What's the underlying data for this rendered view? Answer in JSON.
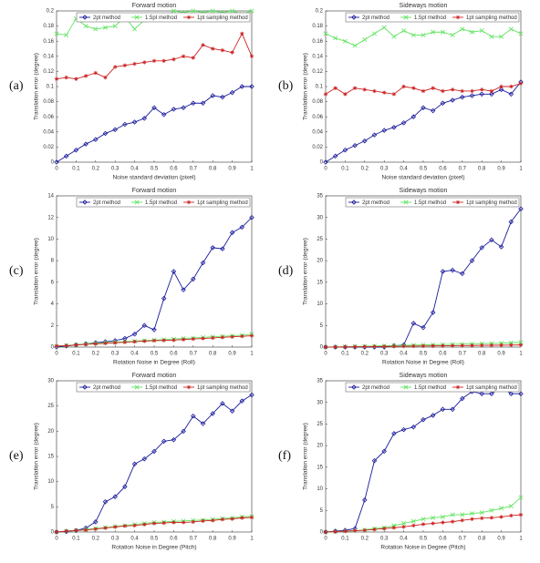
{
  "chart_data": [
    {
      "type": "line",
      "panel_label": "(a)",
      "title": "Forward motion",
      "x_label": "Noise standard deviation (pixel)",
      "y_label": "Translation error (degree)",
      "x": [
        0,
        0.05,
        0.1,
        0.15,
        0.2,
        0.25,
        0.3,
        0.35,
        0.4,
        0.45,
        0.5,
        0.55,
        0.6,
        0.65,
        0.7,
        0.75,
        0.8,
        0.85,
        0.9,
        0.95,
        1
      ],
      "xlim": [
        0,
        1
      ],
      "xticks": [
        0,
        0.1,
        0.2,
        0.3,
        0.4,
        0.5,
        0.6,
        0.7,
        0.8,
        0.9,
        1
      ],
      "ylim": [
        0,
        0.2
      ],
      "yticks": [
        0,
        0.02,
        0.04,
        0.06,
        0.08,
        0.1,
        0.12,
        0.14,
        0.16,
        0.18,
        0.2
      ],
      "legend": "top",
      "series": [
        {
          "name": "2pt method",
          "color": "#1a1a9c",
          "marker": "diamond",
          "values": [
            0,
            0.008,
            0.016,
            0.024,
            0.03,
            0.038,
            0.043,
            0.05,
            0.053,
            0.058,
            0.072,
            0.063,
            0.07,
            0.072,
            0.078,
            0.078,
            0.088,
            0.086,
            0.092,
            0.1,
            0.1
          ]
        },
        {
          "name": "1.5pt method",
          "color": "#5fe35f",
          "marker": "x",
          "values": [
            0.17,
            0.168,
            0.19,
            0.18,
            0.176,
            0.178,
            0.18,
            0.192,
            0.176,
            0.188,
            0.19,
            0.19,
            0.2,
            0.198,
            0.2,
            0.198,
            0.2,
            0.198,
            0.2,
            0.196,
            0.2
          ]
        },
        {
          "name": "1pt sampling method",
          "color": "#cc2222",
          "marker": "star",
          "values": [
            0.11,
            0.112,
            0.11,
            0.114,
            0.118,
            0.112,
            0.126,
            0.128,
            0.13,
            0.132,
            0.134,
            0.134,
            0.136,
            0.14,
            0.138,
            0.155,
            0.15,
            0.148,
            0.145,
            0.17,
            0.14
          ]
        }
      ]
    },
    {
      "type": "line",
      "panel_label": "(b)",
      "title": "Sideways motion",
      "x_label": "Noise standard deviation (pixel)",
      "y_label": "Translation error (degree)",
      "x": [
        0,
        0.05,
        0.1,
        0.15,
        0.2,
        0.25,
        0.3,
        0.35,
        0.4,
        0.45,
        0.5,
        0.55,
        0.6,
        0.65,
        0.7,
        0.75,
        0.8,
        0.85,
        0.9,
        0.95,
        1
      ],
      "xlim": [
        0,
        1
      ],
      "xticks": [
        0,
        0.1,
        0.2,
        0.3,
        0.4,
        0.5,
        0.6,
        0.7,
        0.8,
        0.9,
        1
      ],
      "ylim": [
        0,
        0.2
      ],
      "yticks": [
        0,
        0.02,
        0.04,
        0.06,
        0.08,
        0.1,
        0.12,
        0.14,
        0.16,
        0.18,
        0.2
      ],
      "legend": "top",
      "series": [
        {
          "name": "2pt method",
          "color": "#1a1a9c",
          "marker": "diamond",
          "values": [
            0,
            0.008,
            0.016,
            0.022,
            0.028,
            0.036,
            0.042,
            0.046,
            0.052,
            0.06,
            0.072,
            0.068,
            0.078,
            0.082,
            0.086,
            0.088,
            0.09,
            0.09,
            0.096,
            0.09,
            0.106
          ]
        },
        {
          "name": "1.5pt method",
          "color": "#5fe35f",
          "marker": "x",
          "values": [
            0.17,
            0.164,
            0.16,
            0.154,
            0.162,
            0.17,
            0.178,
            0.166,
            0.174,
            0.168,
            0.168,
            0.172,
            0.172,
            0.168,
            0.176,
            0.172,
            0.174,
            0.166,
            0.166,
            0.176,
            0.17
          ]
        },
        {
          "name": "1pt sampling method",
          "color": "#cc2222",
          "marker": "star",
          "values": [
            0.09,
            0.098,
            0.09,
            0.098,
            0.096,
            0.094,
            0.092,
            0.09,
            0.1,
            0.098,
            0.094,
            0.098,
            0.094,
            0.096,
            0.094,
            0.094,
            0.096,
            0.094,
            0.1,
            0.1,
            0.104
          ]
        }
      ]
    },
    {
      "type": "line",
      "panel_label": "(c)",
      "title": "Forward motion",
      "x_label": "Rotation Noise in Degree (Roll)",
      "y_label": "Translation error (degree)",
      "x": [
        0,
        0.05,
        0.1,
        0.15,
        0.2,
        0.25,
        0.3,
        0.35,
        0.4,
        0.45,
        0.5,
        0.55,
        0.6,
        0.65,
        0.7,
        0.75,
        0.8,
        0.85,
        0.9,
        0.95,
        1
      ],
      "xlim": [
        0,
        1
      ],
      "xticks": [
        0,
        0.1,
        0.2,
        0.3,
        0.4,
        0.5,
        0.6,
        0.7,
        0.8,
        0.9,
        1
      ],
      "ylim": [
        0,
        14
      ],
      "yticks": [
        0,
        2,
        4,
        6,
        8,
        10,
        12,
        14
      ],
      "legend": "top",
      "series": [
        {
          "name": "2pt method",
          "color": "#1a1a9c",
          "marker": "diamond",
          "values": [
            0,
            0.1,
            0.2,
            0.3,
            0.4,
            0.5,
            0.6,
            0.8,
            1.2,
            2,
            1.6,
            4.5,
            7,
            5.3,
            6.3,
            7.8,
            9.2,
            9.1,
            10.6,
            11.1,
            12
          ]
        },
        {
          "name": "1.5pt method",
          "color": "#5fe35f",
          "marker": "x",
          "values": [
            0.1,
            0.15,
            0.2,
            0.3,
            0.35,
            0.4,
            0.45,
            0.5,
            0.55,
            0.6,
            0.65,
            0.7,
            0.75,
            0.8,
            0.85,
            0.9,
            0.95,
            1,
            1.05,
            1.1,
            1.2
          ]
        },
        {
          "name": "1pt sampling method",
          "color": "#cc2222",
          "marker": "star",
          "values": [
            0.1,
            0.12,
            0.2,
            0.25,
            0.3,
            0.35,
            0.4,
            0.45,
            0.5,
            0.55,
            0.6,
            0.62,
            0.65,
            0.7,
            0.75,
            0.8,
            0.85,
            0.9,
            0.95,
            1,
            1.05
          ]
        }
      ]
    },
    {
      "type": "line",
      "panel_label": "(d)",
      "title": "Sideways motion",
      "x_label": "Rotation Noise in Degree (Roll)",
      "y_label": "Translation error (degree)",
      "x": [
        0,
        0.05,
        0.1,
        0.15,
        0.2,
        0.25,
        0.3,
        0.35,
        0.4,
        0.45,
        0.5,
        0.55,
        0.6,
        0.65,
        0.7,
        0.75,
        0.8,
        0.85,
        0.9,
        0.95,
        1
      ],
      "xlim": [
        0,
        1
      ],
      "xticks": [
        0,
        0.1,
        0.2,
        0.3,
        0.4,
        0.5,
        0.6,
        0.7,
        0.8,
        0.9,
        1
      ],
      "ylim": [
        0,
        35
      ],
      "yticks": [
        0,
        5,
        10,
        15,
        20,
        25,
        30,
        35
      ],
      "legend": "top",
      "series": [
        {
          "name": "2pt method",
          "color": "#1a1a9c",
          "marker": "diamond",
          "values": [
            0,
            0,
            0,
            0,
            0,
            0,
            0,
            0.3,
            0.5,
            5.5,
            4.5,
            8,
            17.5,
            17.8,
            17,
            20,
            23,
            24.8,
            23.2,
            29,
            32
          ]
        },
        {
          "name": "1.5pt method",
          "color": "#5fe35f",
          "marker": "x",
          "values": [
            0,
            0.05,
            0.1,
            0.15,
            0.2,
            0.25,
            0.3,
            0.35,
            0.4,
            0.45,
            0.5,
            0.55,
            0.6,
            0.65,
            0.7,
            0.75,
            0.8,
            0.85,
            0.9,
            1,
            1.1
          ]
        },
        {
          "name": "1pt sampling method",
          "color": "#cc2222",
          "marker": "star",
          "values": [
            0,
            0.02,
            0.05,
            0.07,
            0.1,
            0.12,
            0.15,
            0.17,
            0.2,
            0.22,
            0.25,
            0.27,
            0.3,
            0.32,
            0.35,
            0.37,
            0.4,
            0.42,
            0.45,
            0.47,
            0.5
          ]
        }
      ]
    },
    {
      "type": "line",
      "panel_label": "(e)",
      "title": "Forward motion",
      "x_label": "Rotation Noise in Degree (Pitch)",
      "y_label": "Translation error (degree)",
      "x": [
        0,
        0.05,
        0.1,
        0.15,
        0.2,
        0.25,
        0.3,
        0.35,
        0.4,
        0.45,
        0.5,
        0.55,
        0.6,
        0.65,
        0.7,
        0.75,
        0.8,
        0.85,
        0.9,
        0.95,
        1
      ],
      "xlim": [
        0,
        1
      ],
      "xticks": [
        0,
        0.1,
        0.2,
        0.3,
        0.4,
        0.5,
        0.6,
        0.7,
        0.8,
        0.9,
        1
      ],
      "ylim": [
        0,
        30
      ],
      "yticks": [
        0,
        5,
        10,
        15,
        20,
        25,
        30
      ],
      "legend": "top",
      "series": [
        {
          "name": "2pt method",
          "color": "#1a1a9c",
          "marker": "diamond",
          "values": [
            0,
            0.1,
            0.3,
            0.8,
            2,
            6,
            7,
            9,
            13.5,
            14.5,
            16,
            18,
            18.3,
            20,
            23,
            21.5,
            23.5,
            25.5,
            24,
            26,
            27.2
          ]
        },
        {
          "name": "1.5pt method",
          "color": "#5fe35f",
          "marker": "x",
          "values": [
            0,
            0.2,
            0.3,
            0.5,
            0.7,
            0.9,
            1.1,
            1.3,
            1.5,
            1.7,
            1.9,
            2,
            2.1,
            2.2,
            2.3,
            2.4,
            2.5,
            2.7,
            2.8,
            3,
            3.1
          ]
        },
        {
          "name": "1pt sampling method",
          "color": "#cc2222",
          "marker": "star",
          "values": [
            0,
            0.2,
            0.3,
            0.4,
            0.6,
            0.8,
            1,
            1.2,
            1.3,
            1.5,
            1.7,
            1.8,
            1.9,
            1.9,
            2,
            2.2,
            2.3,
            2.5,
            2.6,
            2.8,
            2.9
          ]
        }
      ]
    },
    {
      "type": "line",
      "panel_label": "(f)",
      "title": "Sideways motion",
      "x_label": "Rotation Noise in Degree (Pitch)",
      "y_label": "Translation error (degree)",
      "x": [
        0,
        0.05,
        0.1,
        0.15,
        0.2,
        0.25,
        0.3,
        0.35,
        0.4,
        0.45,
        0.5,
        0.55,
        0.6,
        0.65,
        0.7,
        0.75,
        0.8,
        0.85,
        0.9,
        0.95,
        1
      ],
      "xlim": [
        0,
        1
      ],
      "xticks": [
        0,
        0.1,
        0.2,
        0.3,
        0.4,
        0.5,
        0.6,
        0.7,
        0.8,
        0.9,
        1
      ],
      "ylim": [
        0,
        35
      ],
      "yticks": [
        0,
        5,
        10,
        15,
        20,
        25,
        30,
        35
      ],
      "legend": "top",
      "series": [
        {
          "name": "2pt method",
          "color": "#1a1a9c",
          "marker": "diamond",
          "values": [
            0,
            0.2,
            0.4,
            0.8,
            7.4,
            16.5,
            18.7,
            22.8,
            23.7,
            24.3,
            26,
            27,
            28.4,
            28.4,
            30.9,
            32.5,
            32,
            32,
            33.5,
            32,
            32
          ]
        },
        {
          "name": "1.5pt method",
          "color": "#5fe35f",
          "marker": "x",
          "values": [
            0,
            0.1,
            0.2,
            0.3,
            0.5,
            0.8,
            1,
            1.5,
            2,
            2.5,
            3,
            3.3,
            3.5,
            4,
            4,
            4.3,
            4.5,
            5,
            5.5,
            6,
            8
          ]
        },
        {
          "name": "1pt sampling method",
          "color": "#cc2222",
          "marker": "star",
          "values": [
            0,
            0.1,
            0.2,
            0.3,
            0.4,
            0.6,
            0.8,
            1,
            1.2,
            1.5,
            1.8,
            2,
            2.2,
            2.4,
            2.7,
            3,
            3.2,
            3.3,
            3.5,
            3.8,
            4
          ]
        }
      ]
    }
  ]
}
